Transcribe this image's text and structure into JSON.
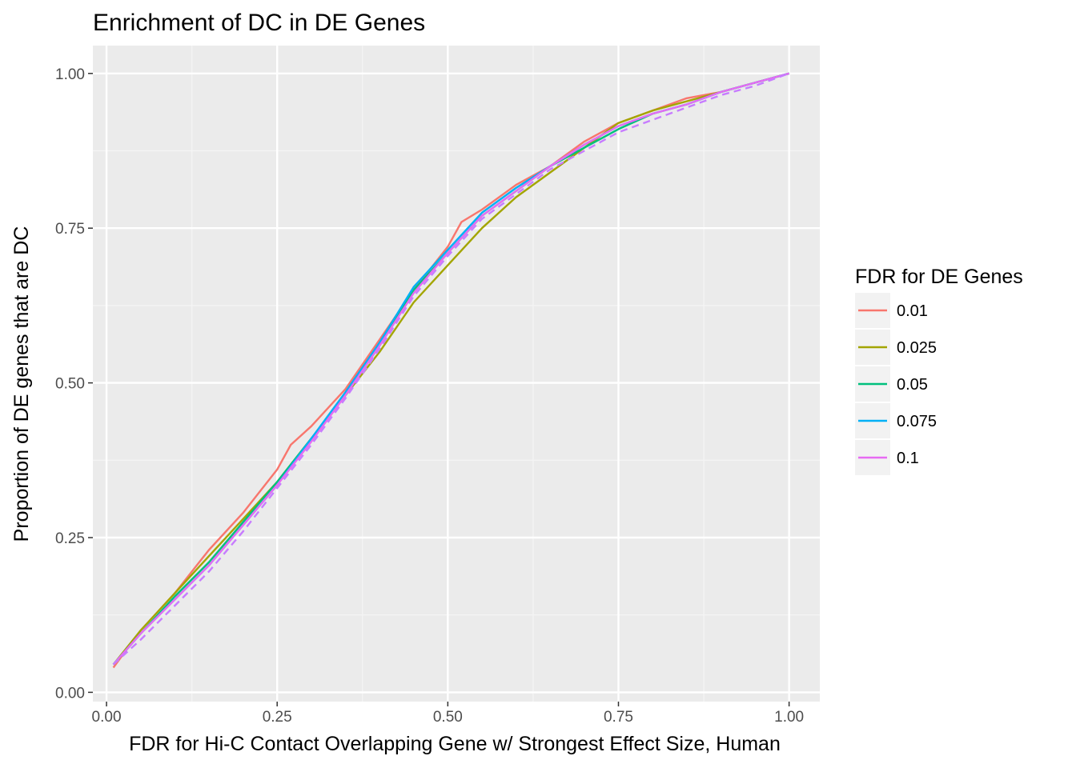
{
  "chart_data": {
    "type": "line",
    "title": "Enrichment of DC in DE Genes",
    "xlabel": "FDR for Hi-C Contact Overlapping Gene w/ Strongest Effect Size, Human",
    "ylabel": "Proportion of DE genes that are DC",
    "xlim": [
      -0.02,
      1.045
    ],
    "ylim": [
      -0.015,
      1.045
    ],
    "x_ticks": [
      0.0,
      0.25,
      0.5,
      0.75,
      1.0
    ],
    "x_tick_labels": [
      "0.00",
      "0.25",
      "0.50",
      "0.75",
      "1.00"
    ],
    "y_ticks": [
      0.0,
      0.25,
      0.5,
      0.75,
      1.0
    ],
    "y_tick_labels": [
      "0.00",
      "0.25",
      "0.50",
      "0.75",
      "1.00"
    ],
    "grid": true,
    "legend": {
      "title": "FDR for DE Genes",
      "position": "right"
    },
    "series": [
      {
        "name": "0.01",
        "color": "#F8766D",
        "dash": "solid",
        "x": [
          0.01,
          0.05,
          0.1,
          0.15,
          0.2,
          0.25,
          0.27,
          0.3,
          0.35,
          0.4,
          0.45,
          0.5,
          0.52,
          0.55,
          0.6,
          0.65,
          0.7,
          0.75,
          0.8,
          0.85,
          0.9,
          0.95,
          1.0
        ],
        "y": [
          0.04,
          0.1,
          0.16,
          0.23,
          0.29,
          0.36,
          0.4,
          0.43,
          0.49,
          0.57,
          0.65,
          0.72,
          0.76,
          0.78,
          0.82,
          0.85,
          0.89,
          0.92,
          0.94,
          0.96,
          0.97,
          0.985,
          1.0
        ]
      },
      {
        "name": "0.025",
        "color": "#A3A500",
        "dash": "solid",
        "x": [
          0.01,
          0.05,
          0.1,
          0.15,
          0.2,
          0.25,
          0.3,
          0.35,
          0.4,
          0.45,
          0.5,
          0.55,
          0.6,
          0.65,
          0.7,
          0.75,
          0.8,
          0.85,
          0.9,
          0.95,
          1.0
        ],
        "y": [
          0.045,
          0.1,
          0.16,
          0.22,
          0.28,
          0.34,
          0.41,
          0.48,
          0.55,
          0.63,
          0.69,
          0.75,
          0.8,
          0.84,
          0.88,
          0.92,
          0.94,
          0.955,
          0.97,
          0.985,
          1.0
        ]
      },
      {
        "name": "0.05",
        "color": "#00BF7D",
        "dash": "solid",
        "x": [
          0.01,
          0.05,
          0.1,
          0.15,
          0.2,
          0.25,
          0.3,
          0.35,
          0.4,
          0.45,
          0.5,
          0.55,
          0.6,
          0.65,
          0.7,
          0.75,
          0.8,
          0.85,
          0.9,
          0.95,
          1.0
        ],
        "y": [
          0.045,
          0.095,
          0.155,
          0.21,
          0.275,
          0.34,
          0.41,
          0.48,
          0.56,
          0.65,
          0.71,
          0.77,
          0.81,
          0.85,
          0.88,
          0.91,
          0.935,
          0.95,
          0.97,
          0.985,
          1.0
        ]
      },
      {
        "name": "0.075",
        "color": "#00B0F6",
        "dash": "solid",
        "x": [
          0.01,
          0.05,
          0.1,
          0.15,
          0.2,
          0.25,
          0.3,
          0.35,
          0.4,
          0.45,
          0.5,
          0.55,
          0.6,
          0.65,
          0.7,
          0.75,
          0.8,
          0.85,
          0.9,
          0.95,
          1.0
        ],
        "y": [
          0.045,
          0.095,
          0.15,
          0.205,
          0.27,
          0.335,
          0.41,
          0.485,
          0.565,
          0.655,
          0.715,
          0.775,
          0.815,
          0.85,
          0.885,
          0.915,
          0.935,
          0.95,
          0.97,
          0.985,
          1.0
        ]
      },
      {
        "name": "0.1",
        "color": "#E76BF3",
        "dash": "solid",
        "x": [
          0.01,
          0.05,
          0.1,
          0.15,
          0.2,
          0.25,
          0.3,
          0.35,
          0.4,
          0.45,
          0.5,
          0.55,
          0.6,
          0.65,
          0.7,
          0.75,
          0.8,
          0.85,
          0.9,
          0.95,
          1.0
        ],
        "y": [
          0.045,
          0.095,
          0.15,
          0.205,
          0.27,
          0.335,
          0.405,
          0.48,
          0.56,
          0.645,
          0.71,
          0.77,
          0.81,
          0.85,
          0.885,
          0.915,
          0.935,
          0.95,
          0.97,
          0.985,
          1.0
        ]
      },
      {
        "name": "",
        "color": "#C77CFF",
        "dash": "dashed",
        "x": [
          0.01,
          0.05,
          0.1,
          0.15,
          0.2,
          0.25,
          0.3,
          0.35,
          0.4,
          0.45,
          0.5,
          0.55,
          0.6,
          0.65,
          0.7,
          0.75,
          0.8,
          0.85,
          0.9,
          0.95,
          1.0
        ],
        "y": [
          0.045,
          0.085,
          0.14,
          0.195,
          0.26,
          0.33,
          0.4,
          0.475,
          0.555,
          0.64,
          0.705,
          0.765,
          0.805,
          0.845,
          0.875,
          0.905,
          0.925,
          0.945,
          0.965,
          0.98,
          1.0
        ]
      }
    ]
  }
}
